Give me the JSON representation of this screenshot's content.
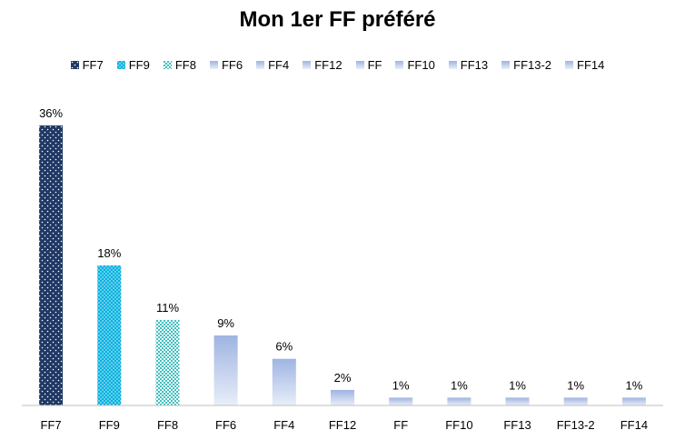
{
  "chart_data": {
    "type": "bar",
    "title": "Mon 1er FF préféré",
    "xlabel": "",
    "ylabel": "",
    "ylim": [
      0,
      36
    ],
    "grid": false,
    "legend_position": "top",
    "categories": [
      "FF7",
      "FF9",
      "FF8",
      "FF6",
      "FF4",
      "FF12",
      "FF",
      "FF10",
      "FF13",
      "FF13-2",
      "FF14"
    ],
    "values": [
      36,
      18,
      11,
      9,
      6,
      2,
      1,
      1,
      1,
      1,
      1
    ],
    "value_labels": [
      "36%",
      "18%",
      "11%",
      "9%",
      "6%",
      "2%",
      "1%",
      "1%",
      "1%",
      "1%",
      "1%"
    ],
    "fills": [
      "dots-navy",
      "dots-cyan",
      "checker-teal",
      "gradient-blue",
      "gradient-blue",
      "gradient-blue",
      "gradient-blue",
      "gradient-blue",
      "gradient-blue",
      "gradient-blue",
      "gradient-blue"
    ],
    "colors": {
      "navy": "#1f3864",
      "cyan": "#00b0e0",
      "teal": "#3fbfbf",
      "gradient_top": "#9fb4e2",
      "gradient_bottom": "#e8eef9",
      "axis": "#bfbfbf"
    }
  }
}
